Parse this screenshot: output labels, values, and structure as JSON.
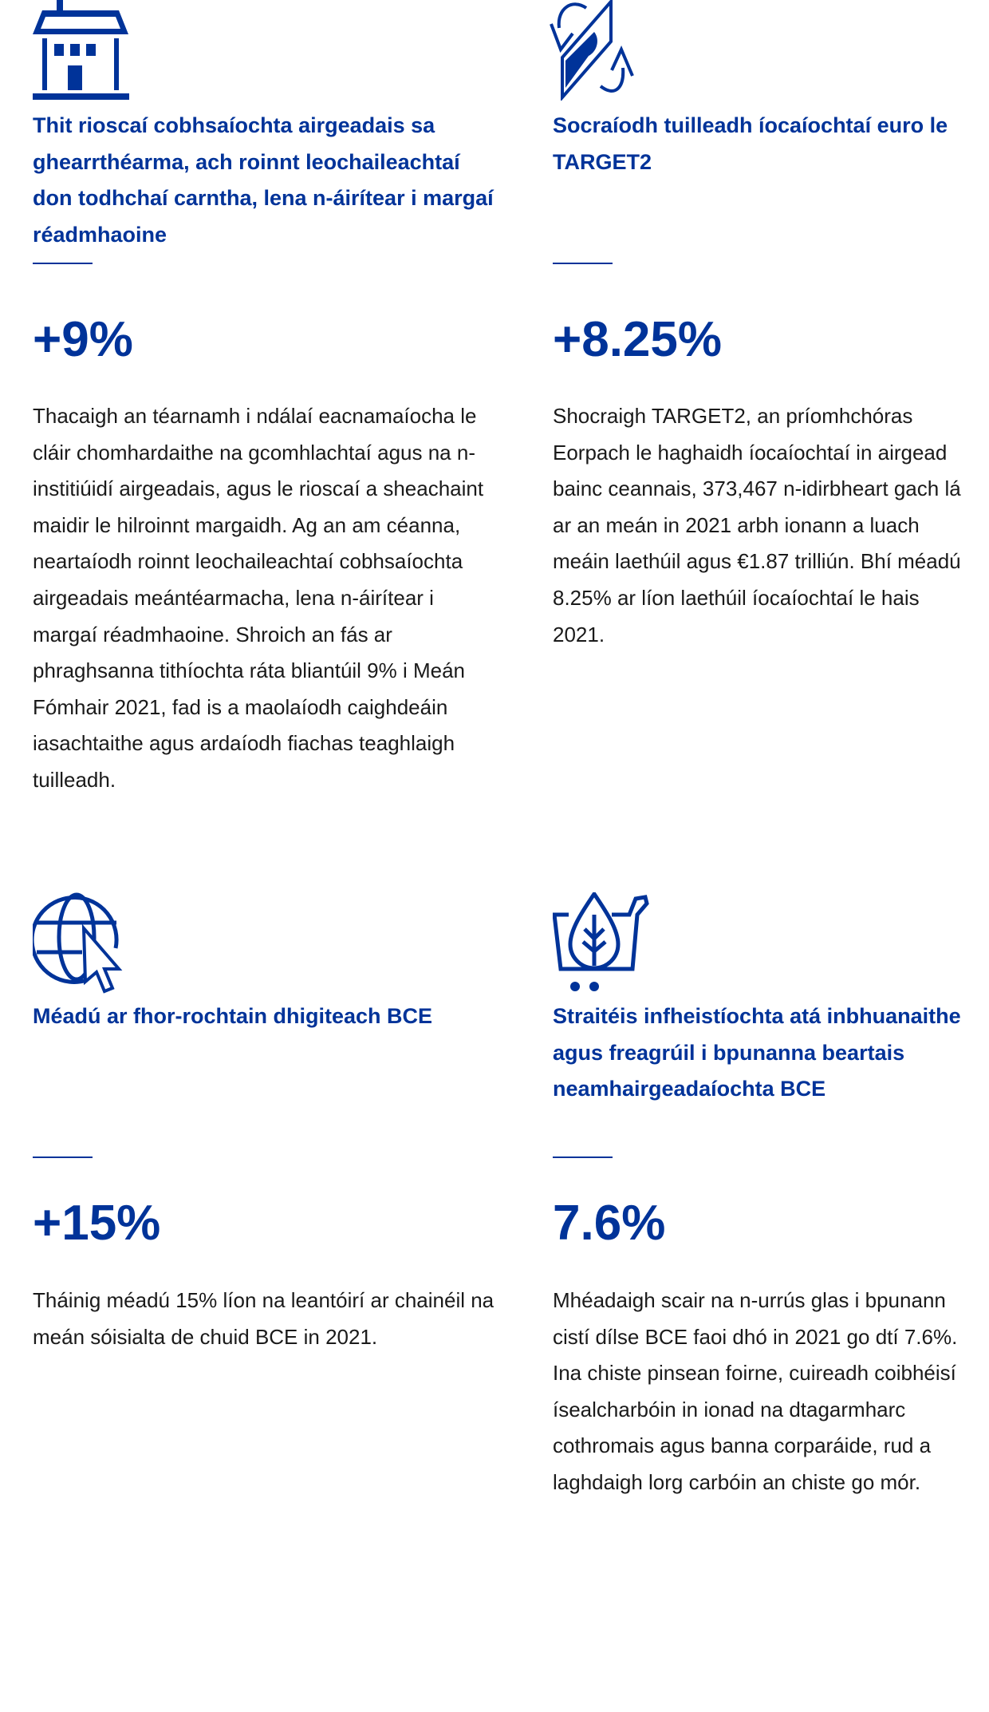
{
  "accent_color": "#003399",
  "items": [
    {
      "icon": "house-icon",
      "title": "Thit rioscaí cobhsaíochta airgeadais sa ghearrthéarma, ach roinnt leochaileachtaí don todhchaí carntha, lena n-áirítear i margaí réadmhaoine",
      "value": "+9%",
      "body": "Thacaigh an téarnamh i ndálaí eacnamaíocha le cláir chomhardaithe na gcomhlachtaí agus na n-institiúidí airgeadais, agus le rioscaí a sheachaint maidir le hilroinnt margaidh. Ag an am céanna, neartaíodh roinnt leochaileachtaí cobhsaíochta airgeadais meántéarmacha, lena n-áirítear i margaí réadmhaoine. Shroich an fás ar phraghsanna tithíochta ráta bliantúil 9% i Meán Fómhair 2021, fad is a maolaíodh caighdeáin iasachtaithe agus ardaíodh fiachas teaghlaigh tuilleadh."
    },
    {
      "icon": "payment-exchange-icon",
      "title": "Socraíodh tuilleadh íocaíochtaí euro le TARGET2",
      "value": "+8.25%",
      "body": "Shocraigh TARGET2, an príomhchóras Eorpach le haghaidh íocaíochtaí in airgead bainc ceannais, 373,467 n-idirbheart gach lá ar an meán in 2021 arbh ionann a luach meáin laethúil agus €1.87 trilliún. Bhí méadú 8.25% ar líon laethúil íocaíochtaí le hais 2021."
    },
    {
      "icon": "globe-cursor-icon",
      "title": "Méadú ar fhor-rochtain dhigiteach BCE",
      "value": "+15%",
      "body": "Tháinig méadú 15% líon na leantóirí ar chainéil na meán sóisialta de chuid BCE in 2021."
    },
    {
      "icon": "green-cart-icon",
      "title": "Straitéis infheistíochta atá inbhuanaithe agus freagrúil i bpunanna beartais neamhairgeadaíochta BCE",
      "value": "7.6%",
      "body": "Mhéadaigh scair na n-urrús glas i bpunann cistí dílse BCE faoi dhó in 2021 go dtí 7.6%. Ina chiste pinsean foirne, cuireadh coibhéisí ísealcharbóin in ionad na dtagarmharc cothromais agus banna corparáide, rud a laghdaigh lorg carbóin an chiste go mór."
    }
  ]
}
